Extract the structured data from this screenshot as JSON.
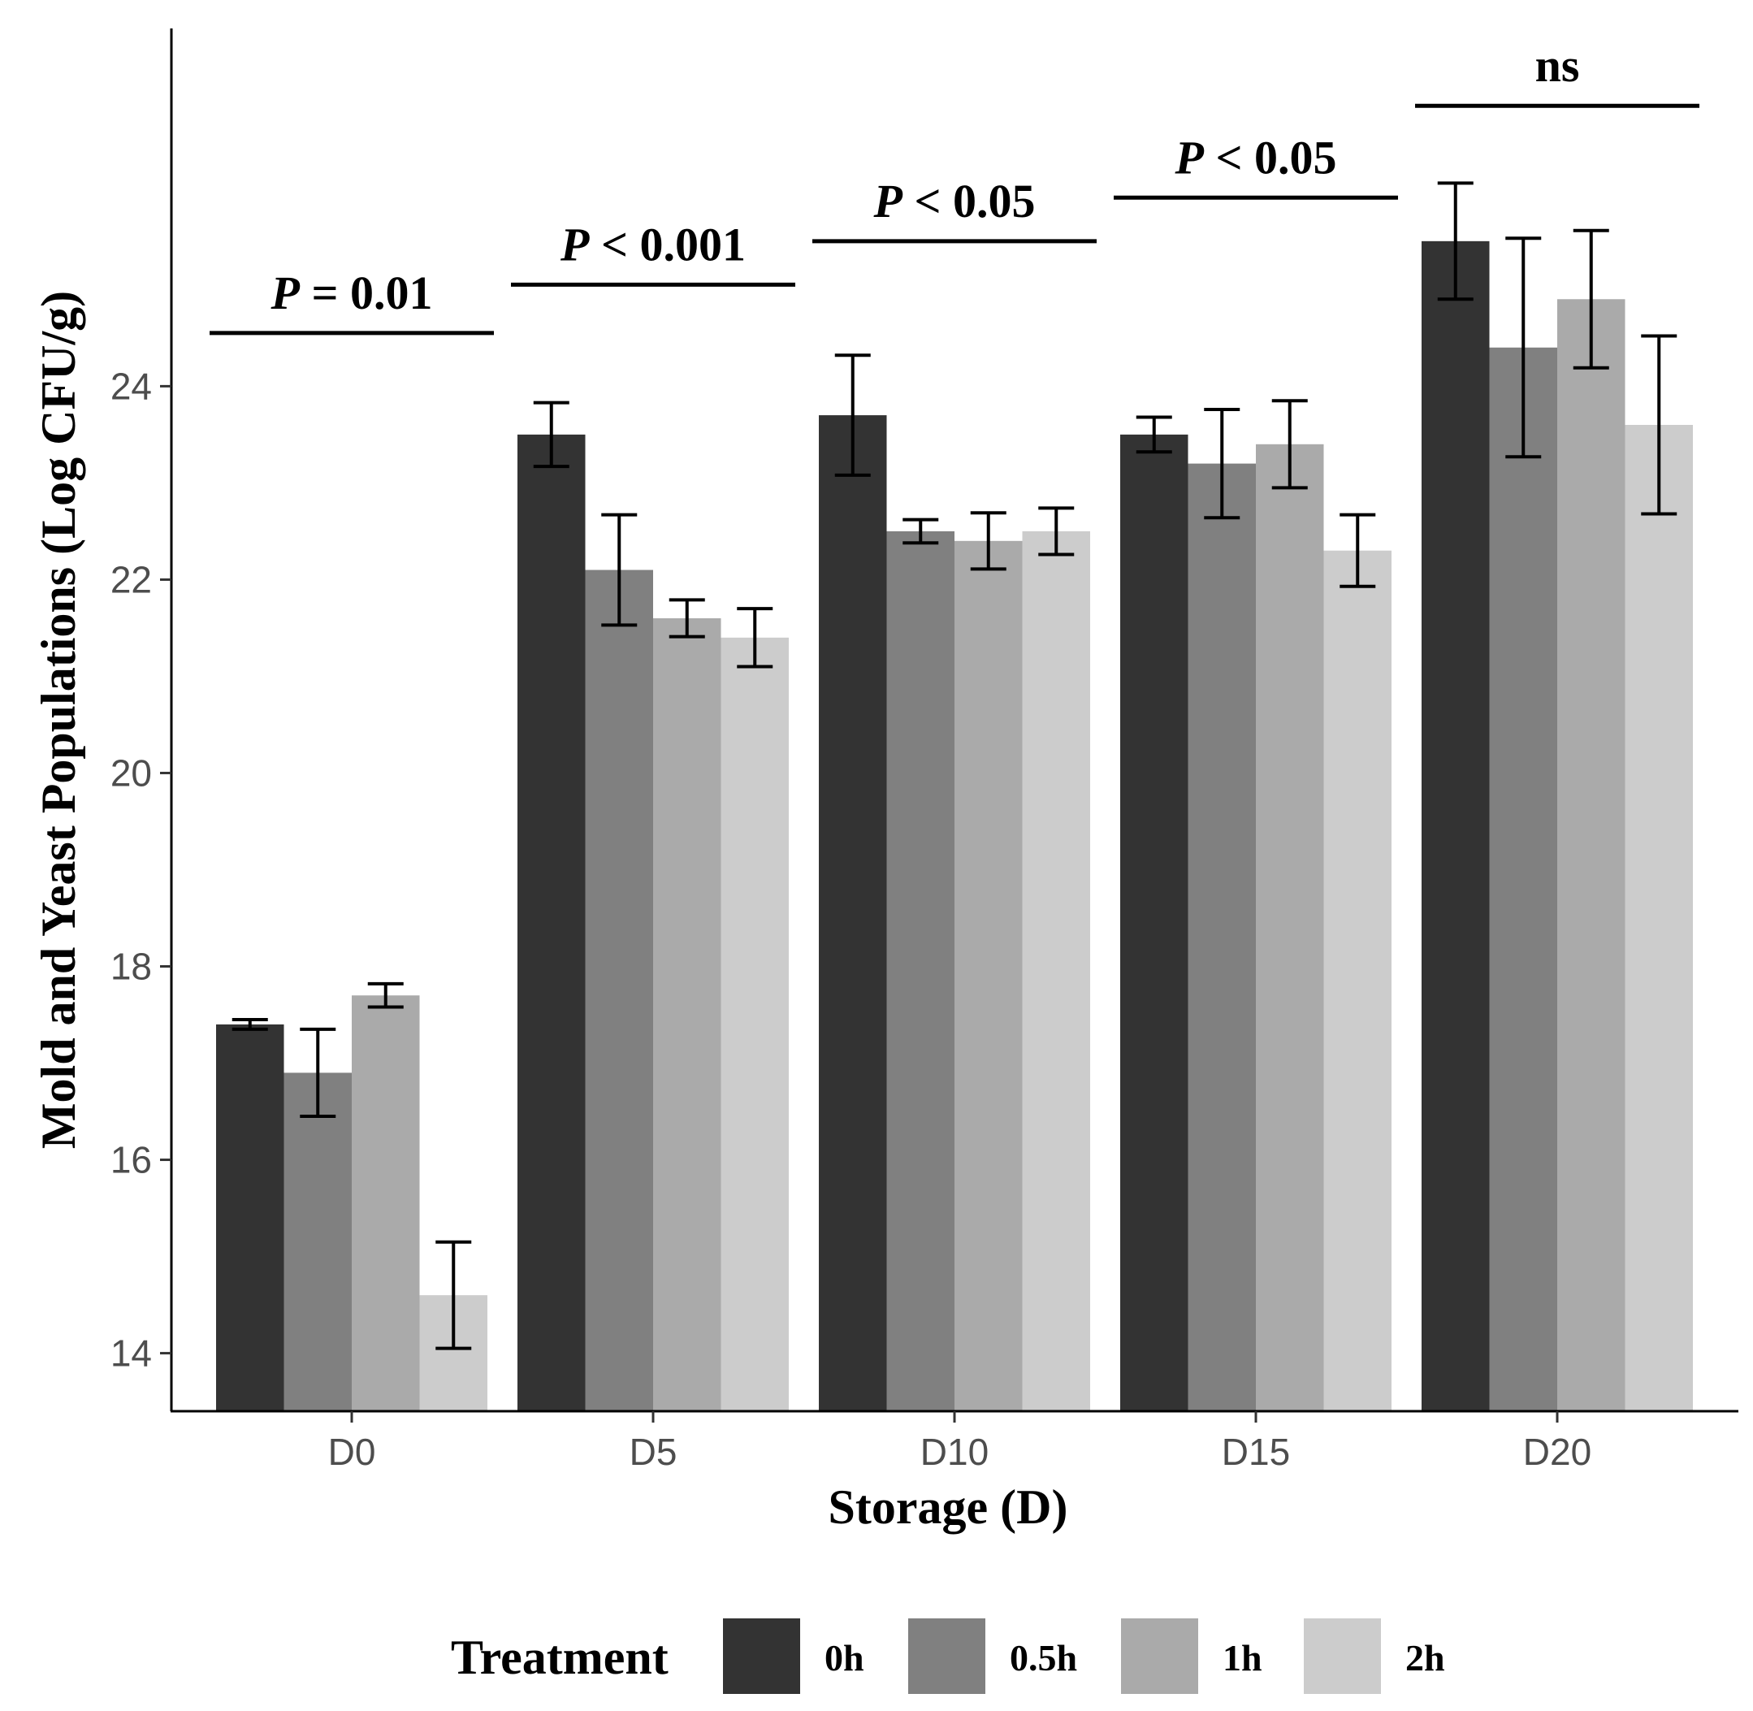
{
  "chart_data": {
    "type": "bar",
    "xlabel": "Storage (D)",
    "ylabel": "Mold and Yeast Populations (Log CFU/g)",
    "ylim": [
      13.4,
      27.7
    ],
    "yticks": [
      14,
      16,
      18,
      20,
      22,
      24
    ],
    "grid": false,
    "legend_position": "bottom",
    "legend_title": "Treatment",
    "categories": [
      "D0",
      "D5",
      "D10",
      "D15",
      "D20"
    ],
    "series": [
      {
        "name": "0h",
        "color": "#333333",
        "values": [
          17.4,
          23.5,
          23.7,
          23.5,
          25.5
        ],
        "errors": [
          0.05,
          0.33,
          0.62,
          0.18,
          0.6
        ]
      },
      {
        "name": "0.5h",
        "color": "#808080",
        "values": [
          16.9,
          22.1,
          22.5,
          23.2,
          24.4
        ],
        "errors": [
          0.45,
          0.57,
          0.12,
          0.56,
          1.13
        ]
      },
      {
        "name": "1h",
        "color": "#aaaaaa",
        "values": [
          17.7,
          21.6,
          22.4,
          23.4,
          24.9
        ],
        "errors": [
          0.12,
          0.19,
          0.29,
          0.45,
          0.71
        ]
      },
      {
        "name": "2h",
        "color": "#cccccc",
        "values": [
          14.6,
          21.4,
          22.5,
          22.3,
          23.6
        ],
        "errors": [
          0.55,
          0.3,
          0.24,
          0.37,
          0.92
        ]
      }
    ],
    "annotations": [
      {
        "category": "D0",
        "italic": "P",
        "rest": " = 0.01",
        "line_y": 24.55
      },
      {
        "category": "D5",
        "italic": "P",
        "rest": " < 0.001",
        "line_y": 25.05
      },
      {
        "category": "D10",
        "italic": "P",
        "rest": " < 0.05",
        "line_y": 25.5
      },
      {
        "category": "D15",
        "italic": "P",
        "rest": " < 0.05",
        "line_y": 25.95
      },
      {
        "category": "D20",
        "italic": "",
        "rest": "ns",
        "line_y": 26.9
      }
    ]
  }
}
